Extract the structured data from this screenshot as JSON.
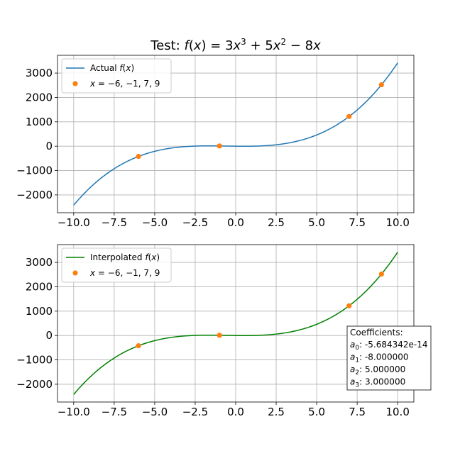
{
  "chart_data": [
    {
      "type": "line",
      "title": "Test: f(x) = 3x³ + 5x² − 8x",
      "xlabel": "",
      "ylabel": "",
      "xlim": [
        -11.0,
        11.0
      ],
      "ylim": [
        -2730,
        3730
      ],
      "grid": true,
      "x_ticks": [
        -10.0,
        -7.5,
        -5.0,
        -2.5,
        0.0,
        2.5,
        5.0,
        7.5,
        10.0
      ],
      "x_tick_labels": [
        "−10.0",
        "−7.5",
        "−5.0",
        "−2.5",
        "0.0",
        "2.5",
        "5.0",
        "7.5",
        "10.0"
      ],
      "y_ticks": [
        -2000,
        -1000,
        0,
        1000,
        2000,
        3000
      ],
      "y_tick_labels": [
        "−2000",
        "−1000",
        "0",
        "1000",
        "2000",
        "3000"
      ],
      "legend_position": "top-left",
      "series": [
        {
          "name": "Actual f(x)",
          "kind": "line",
          "color": "#1f77b4",
          "coefficients": [
            0,
            -8,
            5,
            3
          ],
          "x_range": [
            -10,
            10
          ]
        },
        {
          "name": "x = −6, −1, 7, 9",
          "kind": "points",
          "color": "#ff7f0e",
          "x": [
            -6,
            -1,
            7,
            9
          ],
          "y": [
            -420,
            10,
            1218,
            2520
          ]
        }
      ]
    },
    {
      "type": "line",
      "title": "",
      "xlabel": "",
      "ylabel": "",
      "xlim": [
        -11.0,
        11.0
      ],
      "ylim": [
        -2730,
        3730
      ],
      "grid": true,
      "x_ticks": [
        -10.0,
        -7.5,
        -5.0,
        -2.5,
        0.0,
        2.5,
        5.0,
        7.5,
        10.0
      ],
      "x_tick_labels": [
        "−10.0",
        "−7.5",
        "−5.0",
        "−2.5",
        "0.0",
        "2.5",
        "5.0",
        "7.5",
        "10.0"
      ],
      "y_ticks": [
        -2000,
        -1000,
        0,
        1000,
        2000,
        3000
      ],
      "y_tick_labels": [
        "−2000",
        "−1000",
        "0",
        "1000",
        "2000",
        "3000"
      ],
      "legend_position": "top-left",
      "series": [
        {
          "name": "Interpolated f(x)",
          "kind": "line",
          "color": "#008000",
          "coefficients": [
            0,
            -8,
            5,
            3
          ],
          "x_range": [
            -10,
            10
          ]
        },
        {
          "name": "x = −6, −1, 7, 9",
          "kind": "points",
          "color": "#ff7f0e",
          "x": [
            -6,
            -1,
            7,
            9
          ],
          "y": [
            -420,
            10,
            1218,
            2520
          ]
        }
      ],
      "annotation": {
        "heading": "Coefficients:",
        "lines": [
          "a0: -5.684342e-14",
          "a1: -8.000000",
          "a2: 5.000000",
          "a3: 3.000000"
        ],
        "position": "lower-right"
      }
    }
  ]
}
